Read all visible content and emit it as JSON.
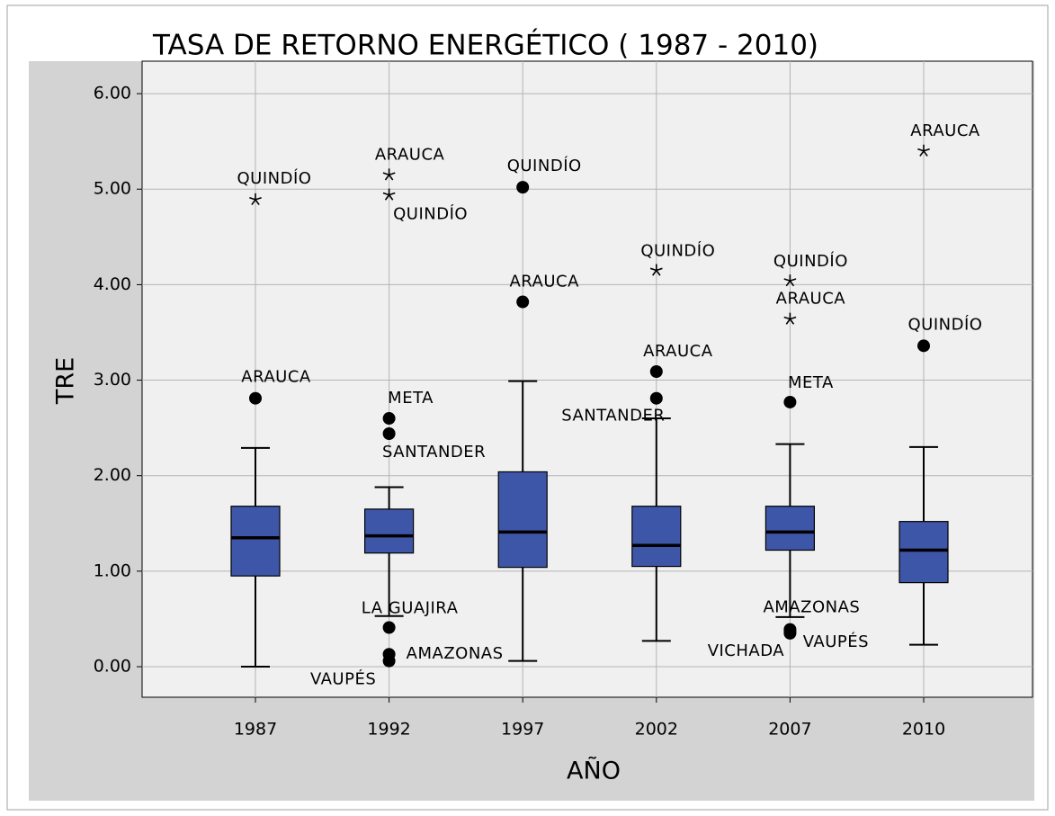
{
  "chart_data": {
    "type": "box",
    "title": "TASA DE RETORNO ENERGÉTICO ( 1987 - 2010)",
    "x_label": "AÑO",
    "y_label": "TRE",
    "categories": [
      "1987",
      "1992",
      "1997",
      "2002",
      "2007",
      "2010"
    ],
    "color": "#3e56a8",
    "grid": true,
    "ylim": [
      -0.32,
      6.34
    ],
    "yticks": [
      {
        "value": 0,
        "label": "0.00"
      },
      {
        "value": 1,
        "label": "1.00"
      },
      {
        "value": 2,
        "label": "2.00"
      },
      {
        "value": 3,
        "label": "3.00"
      },
      {
        "value": 4,
        "label": "4.00"
      },
      {
        "value": 5,
        "label": "5.00"
      },
      {
        "value": 6,
        "label": "6.00"
      }
    ],
    "boxes": [
      {
        "whisker_low": 0.0,
        "q1": 0.95,
        "median": 1.35,
        "q3": 1.68,
        "whisker_high": 2.29,
        "outliers": [
          {
            "label": "QUINDÍO",
            "value": 4.89,
            "marker": "star"
          },
          {
            "label": "ARAUCA",
            "value": 2.81,
            "marker": "circle"
          }
        ]
      },
      {
        "whisker_low": 0.53,
        "q1": 1.19,
        "median": 1.37,
        "q3": 1.65,
        "whisker_high": 1.88,
        "outliers": [
          {
            "label": "ARAUCA",
            "value": 5.15,
            "marker": "star"
          },
          {
            "label": "QUINDÍO",
            "value": 4.94,
            "marker": "star"
          },
          {
            "label": "META",
            "value": 2.6,
            "marker": "circle"
          },
          {
            "label": "SANTANDER",
            "value": 2.44,
            "marker": "circle"
          },
          {
            "label": "LA GUAJIRA",
            "value": 0.41,
            "marker": "circle"
          },
          {
            "label": "AMAZONAS",
            "value": 0.13,
            "marker": "circle"
          },
          {
            "label": "VAUPÉS",
            "value": 0.06,
            "marker": "circle"
          }
        ]
      },
      {
        "whisker_low": 0.06,
        "q1": 1.04,
        "median": 1.41,
        "q3": 2.04,
        "whisker_high": 2.99,
        "outliers": [
          {
            "label": "QUINDÍO",
            "value": 5.02,
            "marker": "circle"
          },
          {
            "label": "ARAUCA",
            "value": 3.82,
            "marker": "circle"
          }
        ]
      },
      {
        "whisker_low": 0.27,
        "q1": 1.05,
        "median": 1.27,
        "q3": 1.68,
        "whisker_high": 2.6,
        "outliers": [
          {
            "label": "QUINDÍO",
            "value": 4.15,
            "marker": "star"
          },
          {
            "label": "ARAUCA",
            "value": 3.09,
            "marker": "circle"
          },
          {
            "label": "SANTANDER",
            "value": 2.81,
            "marker": "circle"
          }
        ]
      },
      {
        "whisker_low": 0.52,
        "q1": 1.22,
        "median": 1.41,
        "q3": 1.68,
        "whisker_high": 2.33,
        "outliers": [
          {
            "label": "QUINDÍO",
            "value": 4.04,
            "marker": "star"
          },
          {
            "label": "ARAUCA",
            "value": 3.64,
            "marker": "star"
          },
          {
            "label": "META",
            "value": 2.77,
            "marker": "circle"
          },
          {
            "label": "AMAZONAS",
            "value": 0.39,
            "marker": "circle"
          },
          {
            "label": "VAUPÉS",
            "value": 0.37,
            "marker": "circle"
          },
          {
            "label": "VICHADA",
            "value": 0.35,
            "marker": "circle"
          }
        ]
      },
      {
        "whisker_low": 0.23,
        "q1": 0.88,
        "median": 1.22,
        "q3": 1.52,
        "whisker_high": 2.3,
        "outliers": [
          {
            "label": "ARAUCA",
            "value": 5.4,
            "marker": "star"
          },
          {
            "label": "QUINDÍO",
            "value": 3.36,
            "marker": "circle"
          }
        ]
      }
    ]
  }
}
